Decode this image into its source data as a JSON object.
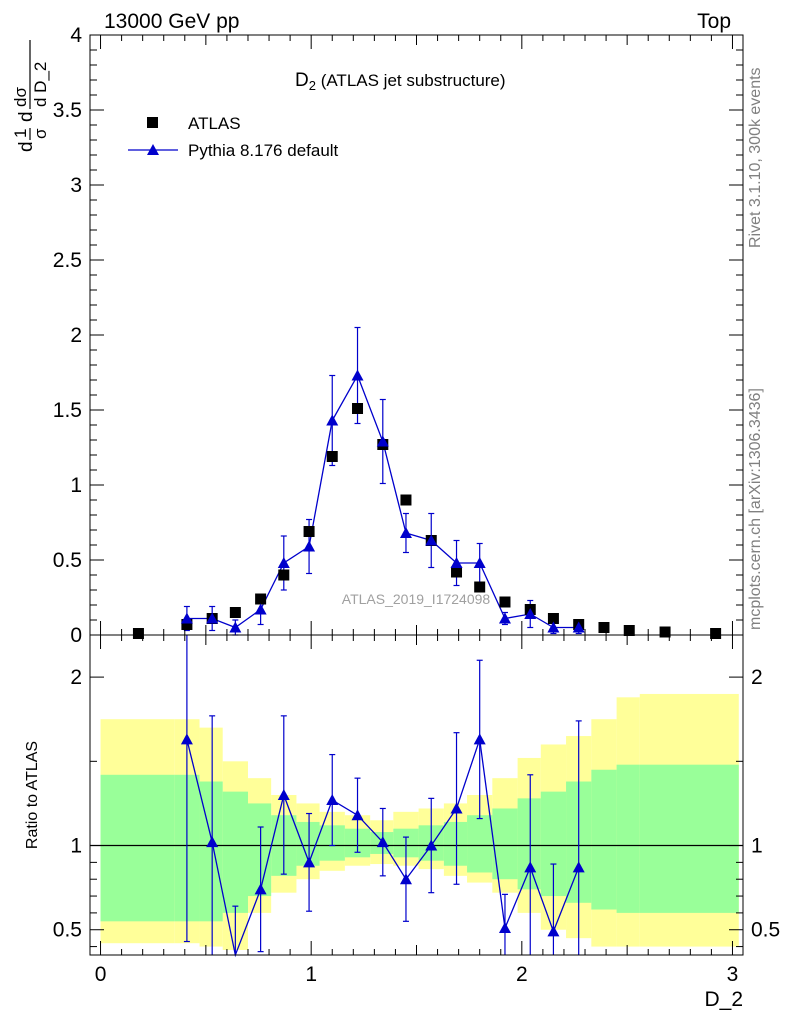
{
  "header": {
    "left": "13000 GeV pp",
    "right": "Top"
  },
  "side_labels": {
    "rivet": "Rivet 3.1.10,  300k events",
    "mcplots": "mcplots.cern.ch [arXiv:1306.3436]"
  },
  "chart_data": [
    {
      "type": "scatter",
      "panel": "main",
      "title": "D₂ (ATLAS jet substructure)",
      "ylabel": "1/σ dσ/dD_2",
      "xlim": [
        -0.05,
        3.05
      ],
      "ylim": [
        0,
        4
      ],
      "yticks": [
        0,
        0.5,
        1,
        1.5,
        2,
        2.5,
        3,
        3.5,
        4
      ],
      "ytick_labels": [
        "0",
        "0.5",
        "1",
        "1.5",
        "2",
        "2.5",
        "3",
        "3.5",
        "4"
      ],
      "legend_position": "top-left",
      "watermark": "ATLAS_2019_I1724098",
      "series": [
        {
          "name": "ATLAS",
          "marker": "square",
          "color": "#000000",
          "x": [
            0.18,
            0.41,
            0.53,
            0.64,
            0.76,
            0.87,
            0.99,
            1.1,
            1.22,
            1.34,
            1.45,
            1.57,
            1.69,
            1.8,
            1.92,
            2.04,
            2.15,
            2.27,
            2.39,
            2.51,
            2.68,
            2.92
          ],
          "y": [
            0.01,
            0.07,
            0.11,
            0.15,
            0.24,
            0.4,
            0.69,
            1.19,
            1.51,
            1.27,
            0.9,
            0.63,
            0.42,
            0.32,
            0.22,
            0.17,
            0.11,
            0.07,
            0.05,
            0.03,
            0.02,
            0.01
          ]
        },
        {
          "name": "Pythia 8.176 default",
          "marker": "triangle",
          "color": "#0000cc",
          "x": [
            0.41,
            0.53,
            0.64,
            0.76,
            0.87,
            0.99,
            1.1,
            1.22,
            1.34,
            1.45,
            1.57,
            1.69,
            1.8,
            1.92,
            2.04,
            2.15,
            2.27
          ],
          "y": [
            0.11,
            0.11,
            0.05,
            0.17,
            0.48,
            0.59,
            1.43,
            1.73,
            1.29,
            0.68,
            0.63,
            0.48,
            0.48,
            0.11,
            0.14,
            0.05,
            0.05
          ],
          "err": [
            0.08,
            0.08,
            0.05,
            0.1,
            0.18,
            0.18,
            0.3,
            0.32,
            0.28,
            0.13,
            0.18,
            0.15,
            0.13,
            0.04,
            0.09,
            0.04,
            0.04
          ]
        }
      ]
    },
    {
      "type": "line",
      "panel": "ratio",
      "ylabel": "Ratio to ATLAS",
      "xlabel": "D_2",
      "xlim": [
        -0.05,
        3.05
      ],
      "ylim": [
        0.35,
        2.25
      ],
      "xticks": [
        0,
        1,
        2,
        3
      ],
      "xtick_labels": [
        "0",
        "1",
        "2",
        "3"
      ],
      "yticks": [
        0.5,
        1,
        2
      ],
      "ytick_labels": [
        "0.5",
        "1",
        "2"
      ],
      "band_edges": [
        0,
        0.35,
        0.47,
        0.58,
        0.7,
        0.81,
        0.93,
        1.04,
        1.16,
        1.28,
        1.39,
        1.51,
        1.63,
        1.74,
        1.86,
        1.98,
        2.09,
        2.21,
        2.33,
        2.45,
        2.56,
        3.03
      ],
      "yellow_band": {
        "lo": [
          0.42,
          0.42,
          0.4,
          0.38,
          0.6,
          0.72,
          0.8,
          0.85,
          0.88,
          0.89,
          0.88,
          0.86,
          0.82,
          0.78,
          0.72,
          0.6,
          0.5,
          0.45,
          0.4,
          0.4,
          0.4
        ],
        "hi": [
          1.75,
          1.75,
          1.7,
          1.5,
          1.4,
          1.3,
          1.25,
          1.2,
          1.18,
          1.15,
          1.2,
          1.22,
          1.25,
          1.3,
          1.4,
          1.52,
          1.6,
          1.65,
          1.75,
          1.88,
          1.9
        ]
      },
      "green_band": {
        "lo": [
          0.55,
          0.55,
          0.55,
          0.6,
          0.7,
          0.82,
          0.88,
          0.91,
          0.93,
          0.95,
          0.93,
          0.91,
          0.88,
          0.84,
          0.8,
          0.74,
          0.7,
          0.66,
          0.62,
          0.6,
          0.6
        ],
        "hi": [
          1.42,
          1.42,
          1.38,
          1.32,
          1.25,
          1.18,
          1.14,
          1.12,
          1.1,
          1.08,
          1.1,
          1.12,
          1.14,
          1.18,
          1.22,
          1.28,
          1.32,
          1.38,
          1.45,
          1.48,
          1.48
        ]
      },
      "series": [
        {
          "name": "Pythia 8.176 default",
          "color": "#0000cc",
          "x": [
            0.41,
            0.53,
            0.64,
            0.76,
            0.87,
            0.99,
            1.1,
            1.22,
            1.34,
            1.45,
            1.57,
            1.69,
            1.8,
            1.92,
            2.04,
            2.15,
            2.27
          ],
          "y": [
            1.63,
            1.02,
            0.34,
            0.74,
            1.3,
            0.9,
            1.27,
            1.18,
            1.02,
            0.8,
            1.0,
            1.22,
            1.63,
            0.51,
            0.87,
            0.49,
            0.87
          ],
          "err": [
            1.2,
            0.75,
            0.3,
            0.37,
            0.47,
            0.29,
            0.27,
            0.22,
            0.2,
            0.25,
            0.28,
            0.45,
            0.47,
            0.2,
            0.55,
            0.4,
            0.87
          ]
        }
      ]
    }
  ]
}
